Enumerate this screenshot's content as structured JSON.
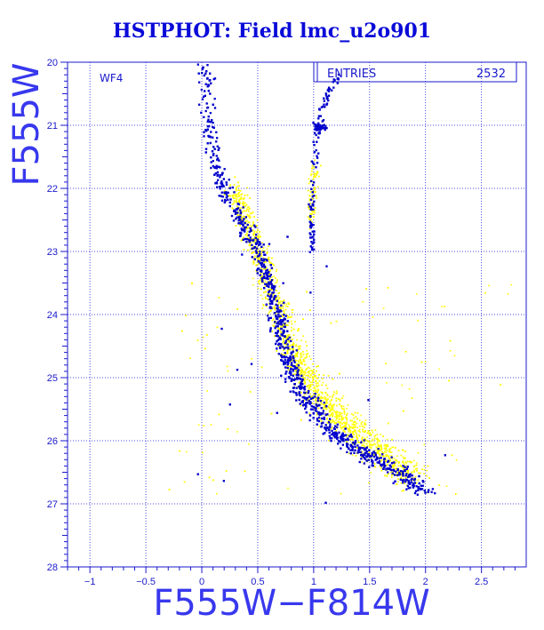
{
  "title": "HSTPHOT: Field lmc_u2o901",
  "chart_data": {
    "type": "scatter",
    "xlabel": "F555W−F814W",
    "ylabel": "F555W",
    "xlim": [
      -1.2,
      2.9
    ],
    "ylim": [
      28,
      20
    ],
    "y_inverted": true,
    "x_ticks": [
      -1,
      -0.5,
      0,
      0.5,
      1,
      1.5,
      2,
      2.5
    ],
    "x_tick_labels": [
      "−1",
      "−0.5",
      "0",
      "0.5",
      "1",
      "1.5",
      "2",
      "2.5"
    ],
    "y_ticks": [
      20,
      21,
      22,
      23,
      24,
      25,
      26,
      27,
      28
    ],
    "y_tick_labels": [
      "20",
      "21",
      "22",
      "23",
      "24",
      "25",
      "26",
      "27",
      "28"
    ],
    "grid": true,
    "panel_label": "WF4",
    "stats_box": {
      "label": "ENTRIES",
      "value": "2532"
    },
    "colors": {
      "title": "#0a0ad8",
      "axes": "#1a1acc",
      "background_stars": "#ffff00",
      "stars": "#0000cc"
    },
    "series": [
      {
        "color": "#ffff00",
        "ridge": [
          [
            0.04,
            21.2
          ],
          [
            0.25,
            21.9
          ],
          [
            0.42,
            22.6
          ],
          [
            0.56,
            23.3
          ],
          [
            0.7,
            24.0
          ],
          [
            0.82,
            24.6
          ],
          [
            0.96,
            25.1
          ],
          [
            1.15,
            25.5
          ],
          [
            1.35,
            25.85
          ],
          [
            1.6,
            26.2
          ],
          [
            1.9,
            26.6
          ]
        ],
        "branch": [
          [
            0.97,
            22.5
          ],
          [
            1.02,
            21.6
          ]
        ],
        "scatter_region": {
          "x": [
            -0.3,
            2.8
          ],
          "y": [
            23.5,
            26.9
          ]
        },
        "approx_points": 3800
      },
      {
        "color": "#0000cc",
        "ridge": [
          [
            0.02,
            20.0
          ],
          [
            0.04,
            20.6
          ],
          [
            0.09,
            21.4
          ],
          [
            0.2,
            22.0
          ],
          [
            0.35,
            22.5
          ],
          [
            0.5,
            22.95
          ],
          [
            0.6,
            23.5
          ],
          [
            0.68,
            24.0
          ],
          [
            0.75,
            24.6
          ],
          [
            0.85,
            25.1
          ],
          [
            1.0,
            25.5
          ],
          [
            1.2,
            25.9
          ],
          [
            1.45,
            26.2
          ],
          [
            1.7,
            26.45
          ],
          [
            2.0,
            26.8
          ]
        ],
        "red_giant_branch": [
          [
            0.98,
            23.0
          ],
          [
            0.98,
            22.4
          ],
          [
            1.0,
            21.8
          ],
          [
            1.04,
            21.1
          ],
          [
            1.1,
            20.6
          ],
          [
            1.22,
            20.2
          ]
        ],
        "red_clump": {
          "x": 1.05,
          "y": 21.05
        },
        "approx_points": 2532
      }
    ]
  }
}
